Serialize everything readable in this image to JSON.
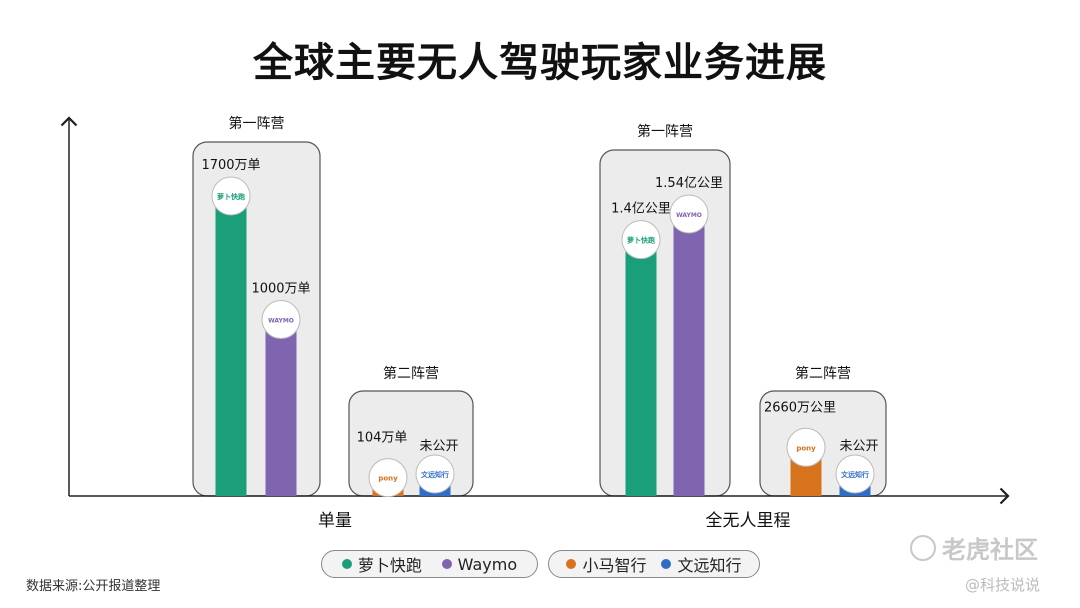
{
  "title": "全球主要无人驾驶玩家业务进展",
  "source": "数据来源:公开报道整理",
  "watermark": {
    "main": "老虎社区",
    "sub": "@科技说说"
  },
  "colors": {
    "luobo": "#1b9e7a",
    "waymo": "#7f65b0",
    "pony": "#d8731d",
    "weride": "#2f6ec4",
    "group_bg": "#ececec",
    "group_border": "#555555"
  },
  "legend": {
    "group1": [
      {
        "label": "萝卜快跑",
        "color": "#1b9e7a"
      },
      {
        "label": "Waymo",
        "color": "#7f65b0"
      }
    ],
    "group2": [
      {
        "label": "小马智行",
        "color": "#d8731d"
      },
      {
        "label": "文远知行",
        "color": "#2f6ec4"
      }
    ]
  },
  "chart_data": [
    {
      "type": "bar",
      "category": "单量",
      "camps": [
        {
          "name": "第一阵营",
          "bars": [
            {
              "company": "萝卜快跑",
              "logo": "萝卜快跑",
              "value": 1700,
              "label": "1700万单",
              "color": "#1b9e7a"
            },
            {
              "company": "Waymo",
              "logo": "WAYMO",
              "value": 1000,
              "label": "1000万单",
              "color": "#7f65b0"
            }
          ]
        },
        {
          "name": "第二阵营",
          "bars": [
            {
              "company": "小马智行",
              "logo": "pony",
              "value": 104,
              "label": "104万单",
              "color": "#d8731d"
            },
            {
              "company": "文远知行",
              "logo": "文远知行",
              "value": null,
              "label": "未公开",
              "color": "#2f6ec4"
            }
          ]
        }
      ]
    },
    {
      "type": "bar",
      "category": "全无人里程",
      "camps": [
        {
          "name": "第一阵营",
          "bars": [
            {
              "company": "萝卜快跑",
              "logo": "萝卜快跑",
              "value": 14000,
              "label": "1.4亿公里",
              "color": "#1b9e7a"
            },
            {
              "company": "Waymo",
              "logo": "WAYMO",
              "value": 15400,
              "label": "1.54亿公里",
              "color": "#7f65b0"
            }
          ]
        },
        {
          "name": "第二阵营",
          "bars": [
            {
              "company": "小马智行",
              "logo": "pony",
              "value": 2660,
              "label": "2660万公里",
              "color": "#d8731d"
            },
            {
              "company": "文远知行",
              "logo": "文远知行",
              "value": null,
              "label": "未公开",
              "color": "#2f6ec4"
            }
          ]
        }
      ]
    }
  ]
}
